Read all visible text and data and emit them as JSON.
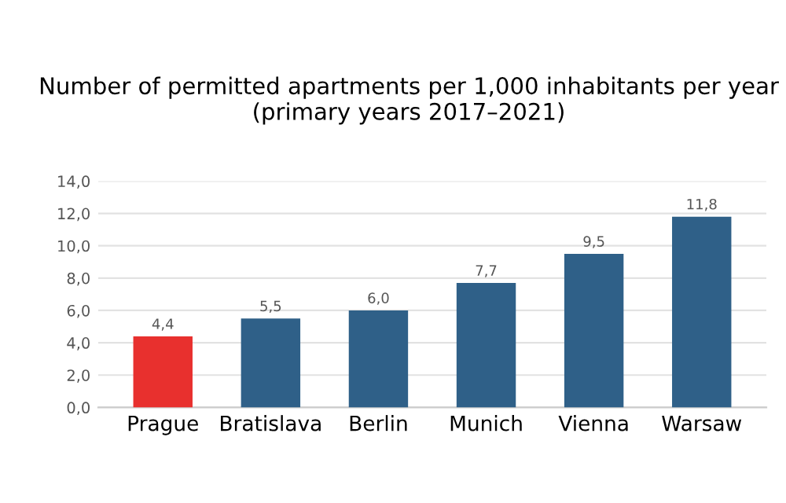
{
  "chart_data": {
    "type": "bar",
    "title": "Number of permitted apartments per 1,000 inhabitants per year\n(primary years 2017–2021)",
    "categories": [
      "Prague",
      "Bratislava",
      "Berlin",
      "Munich",
      "Vienna",
      "Warsaw"
    ],
    "values": [
      4.4,
      5.5,
      6.0,
      7.7,
      9.5,
      11.8
    ],
    "colors": [
      "#e8302e",
      "#2f6088",
      "#2f6088",
      "#2f6088",
      "#2f6088",
      "#2f6088"
    ],
    "value_labels": [
      "4,4",
      "5,5",
      "6,0",
      "7,7",
      "9,5",
      "11,8"
    ],
    "ylim": [
      0,
      14
    ],
    "yticks": [
      {
        "value": 0,
        "label": "0,0"
      },
      {
        "value": 2,
        "label": "2,0"
      },
      {
        "value": 4,
        "label": "4,0"
      },
      {
        "value": 6,
        "label": "6,0"
      },
      {
        "value": 8,
        "label": "8,0"
      },
      {
        "value": 10,
        "label": "10,0"
      },
      {
        "value": 12,
        "label": "12,0"
      },
      {
        "value": 14,
        "label": "14,0"
      }
    ],
    "grid": "y"
  }
}
